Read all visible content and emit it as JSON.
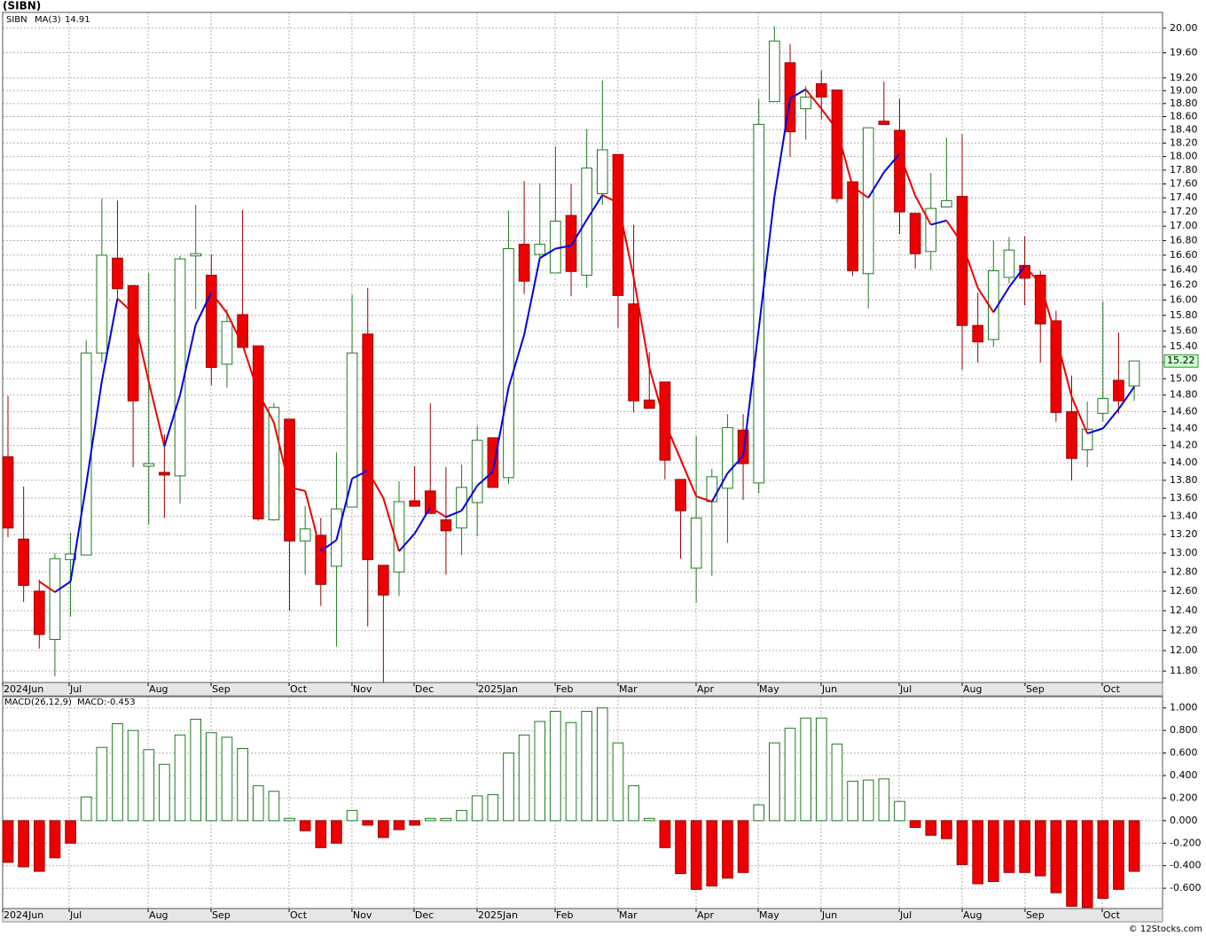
{
  "footer": "© 12Stocks.com",
  "chart_data": [
    {
      "type": "candlestick",
      "title": "(SIBN)",
      "name": "SIBN",
      "name_color": "#008000",
      "last_label": "15.22",
      "up_color": "#ffffff",
      "up_edge": "#1f7a1f",
      "down_color": "#ee0000",
      "down_edge": "#990000",
      "log_scale": true,
      "grid": true,
      "open": [
        14.07,
        13.15,
        12.6,
        12.11,
        12.93,
        12.98,
        15.32,
        16.56,
        16.19,
        13.96,
        13.89,
        13.85,
        16.59,
        16.33,
        15.18,
        15.81,
        15.41,
        13.36,
        14.51,
        13.13,
        13.19,
        12.86,
        13.5,
        15.56,
        12.87,
        12.8,
        13.57,
        13.68,
        13.36,
        13.27,
        13.55,
        14.29,
        13.83,
        16.75,
        16.61,
        16.36,
        17.15,
        16.33,
        17.46,
        18.03,
        15.95,
        14.74,
        14.96,
        13.81,
        12.84,
        13.56,
        13.71,
        14.38,
        13.77,
        18.83,
        19.44,
        18.72,
        19.11,
        19.01,
        17.63,
        16.35,
        18.53,
        18.39,
        17.18,
        16.65,
        17.27,
        17.42,
        15.67,
        15.49,
        16.3,
        16.46,
        16.33,
        15.73,
        14.6,
        14.15,
        14.58,
        14.98,
        14.91
      ],
      "high": [
        14.79,
        13.73,
        12.72,
        13.0,
        13.22,
        15.48,
        17.39,
        17.36,
        16.2,
        16.36,
        14.33,
        16.59,
        17.3,
        16.61,
        15.88,
        17.23,
        15.41,
        14.7,
        14.51,
        13.51,
        13.38,
        14.12,
        16.07,
        16.16,
        12.87,
        13.79,
        13.96,
        14.7,
        13.95,
        13.98,
        14.43,
        14.29,
        17.22,
        17.64,
        17.61,
        18.15,
        17.6,
        18.41,
        19.16,
        18.03,
        17.02,
        15.33,
        14.96,
        13.81,
        14.31,
        13.93,
        14.57,
        14.57,
        18.87,
        20.03,
        19.74,
        19.07,
        19.32,
        19.01,
        17.63,
        18.43,
        19.14,
        18.87,
        17.18,
        17.76,
        18.28,
        18.33,
        16.1,
        16.8,
        16.85,
        16.86,
        16.39,
        15.86,
        15.04,
        14.72,
        15.98,
        15.58,
        15.22
      ],
      "low": [
        13.17,
        12.49,
        12.02,
        11.75,
        12.34,
        12.98,
        15.2,
        15.99,
        13.95,
        13.31,
        13.38,
        13.54,
        15.88,
        14.92,
        14.89,
        15.39,
        13.35,
        13.35,
        12.4,
        12.77,
        12.45,
        12.04,
        13.5,
        12.24,
        11.69,
        12.55,
        13.51,
        13.43,
        12.77,
        12.98,
        13.18,
        13.72,
        13.76,
        16.08,
        16.51,
        16.36,
        16.05,
        16.16,
        17.3,
        15.64,
        14.59,
        14.64,
        13.81,
        12.94,
        12.48,
        12.76,
        13.11,
        13.58,
        13.65,
        18.83,
        18.0,
        18.25,
        18.56,
        17.33,
        16.32,
        15.89,
        18.48,
        16.89,
        16.42,
        16.4,
        17.27,
        15.11,
        15.2,
        15.4,
        16.22,
        15.93,
        15.2,
        14.48,
        13.8,
        13.95,
        14.48,
        14.58,
        14.73
      ],
      "close": [
        13.27,
        12.66,
        12.16,
        12.94,
        12.99,
        15.32,
        16.6,
        16.15,
        14.73,
        13.99,
        13.86,
        16.55,
        16.62,
        15.14,
        15.72,
        15.39,
        13.37,
        14.65,
        13.13,
        13.26,
        12.67,
        13.48,
        15.32,
        12.93,
        12.56,
        13.56,
        13.51,
        13.43,
        13.24,
        13.72,
        14.26,
        13.72,
        16.69,
        16.25,
        16.75,
        17.07,
        16.38,
        17.83,
        18.1,
        16.06,
        14.73,
        14.64,
        14.03,
        13.46,
        13.38,
        13.84,
        14.41,
        13.99,
        18.48,
        19.79,
        18.37,
        18.9,
        18.9,
        17.39,
        16.39,
        18.43,
        18.48,
        17.2,
        16.62,
        17.25,
        17.36,
        15.67,
        15.46,
        16.39,
        16.67,
        16.29,
        15.69,
        14.59,
        14.05,
        14.39,
        14.76,
        14.73,
        15.22
      ],
      "series": [
        {
          "name": "MA(3)",
          "label": "14.91",
          "color": "#0000cc",
          "up_color": "#0000dd",
          "down_color": "#ee0000",
          "values": [
            null,
            null,
            12.7,
            12.59,
            12.7,
            13.75,
            14.97,
            16.02,
            15.83,
            14.96,
            14.19,
            14.8,
            15.68,
            16.1,
            15.83,
            15.42,
            14.83,
            14.47,
            13.72,
            13.68,
            13.02,
            13.14,
            13.82,
            13.91,
            13.6,
            13.02,
            13.21,
            13.5,
            13.39,
            13.46,
            13.74,
            13.9,
            14.89,
            15.55,
            16.56,
            16.69,
            16.73,
            17.09,
            17.44,
            17.33,
            16.3,
            15.14,
            14.47,
            14.04,
            13.62,
            13.56,
            13.88,
            14.08,
            15.63,
            17.42,
            18.88,
            19.02,
            18.72,
            18.4,
            17.56,
            17.4,
            17.77,
            18.04,
            17.43,
            17.02,
            17.08,
            16.76,
            16.16,
            15.84,
            16.17,
            16.45,
            16.22,
            15.52,
            14.78,
            14.34,
            14.4,
            14.63,
            14.9
          ]
        }
      ],
      "xlim": [
        -0.34,
        73.81
      ],
      "xticks": [
        {
          "value": -0.34,
          "label": "2024Jun"
        },
        {
          "value": 3.91,
          "label": "Jul"
        },
        {
          "value": 8.96,
          "label": "Aug"
        },
        {
          "value": 12.98,
          "label": "Sep"
        },
        {
          "value": 17.97,
          "label": "Oct"
        },
        {
          "value": 21.99,
          "label": "Nov"
        },
        {
          "value": 25.96,
          "label": "Dec"
        },
        {
          "value": 29.99,
          "label": "2025Jan"
        },
        {
          "value": 34.98,
          "label": "Feb"
        },
        {
          "value": 39.0,
          "label": "Mar"
        },
        {
          "value": 43.99,
          "label": "Apr"
        },
        {
          "value": 47.96,
          "label": "May"
        },
        {
          "value": 51.98,
          "label": "Jun"
        },
        {
          "value": 56.97,
          "label": "Jul"
        },
        {
          "value": 61.0,
          "label": "Aug"
        },
        {
          "value": 65.02,
          "label": "Sep"
        },
        {
          "value": 69.95,
          "label": "Oct"
        }
      ],
      "ylim": [
        11.69,
        20.26
      ],
      "yticks": [
        {
          "value": 20,
          "label": "20.00"
        },
        {
          "value": 19.6,
          "label": "19.60"
        },
        {
          "value": 19.2,
          "label": "19.20"
        },
        {
          "value": 19,
          "label": "19.00"
        },
        {
          "value": 18.8,
          "label": "18.80"
        },
        {
          "value": 18.6,
          "label": "18.60"
        },
        {
          "value": 18.4,
          "label": "18.40"
        },
        {
          "value": 18.2,
          "label": "18.20"
        },
        {
          "value": 18,
          "label": "18.00"
        },
        {
          "value": 17.8,
          "label": "17.80"
        },
        {
          "value": 17.6,
          "label": "17.60"
        },
        {
          "value": 17.4,
          "label": "17.40"
        },
        {
          "value": 17.2,
          "label": "17.20"
        },
        {
          "value": 17,
          "label": "17.00"
        },
        {
          "value": 16.8,
          "label": "16.80"
        },
        {
          "value": 16.6,
          "label": "16.60"
        },
        {
          "value": 16.4,
          "label": "16.40"
        },
        {
          "value": 16.2,
          "label": "16.20"
        },
        {
          "value": 16,
          "label": "16.00"
        },
        {
          "value": 15.8,
          "label": "15.80"
        },
        {
          "value": 15.6,
          "label": "15.60"
        },
        {
          "value": 15.4,
          "label": "15.40"
        },
        {
          "value": 15.2,
          "label": "15.20"
        },
        {
          "value": 15,
          "label": "15.00"
        },
        {
          "value": 14.8,
          "label": "14.80"
        },
        {
          "value": 14.6,
          "label": "14.60"
        },
        {
          "value": 14.4,
          "label": "14.40"
        },
        {
          "value": 14.2,
          "label": "14.20"
        },
        {
          "value": 14,
          "label": "14.00"
        },
        {
          "value": 13.8,
          "label": "13.80"
        },
        {
          "value": 13.6,
          "label": "13.60"
        },
        {
          "value": 13.4,
          "label": "13.40"
        },
        {
          "value": 13.2,
          "label": "13.20"
        },
        {
          "value": 13,
          "label": "13.00"
        },
        {
          "value": 12.8,
          "label": "12.80"
        },
        {
          "value": 12.6,
          "label": "12.60"
        },
        {
          "value": 12.4,
          "label": "12.40"
        },
        {
          "value": 12.2,
          "label": "12.20"
        },
        {
          "value": 12,
          "label": "12.00"
        },
        {
          "value": 11.8,
          "label": "11.80"
        }
      ]
    },
    {
      "type": "bar",
      "name": "MACD(26,12,9)",
      "label": "MACD:-0.453",
      "label_color": "#0000cc",
      "up_color": "#ffffff",
      "up_edge": "#1f7a1f",
      "down_color": "#ee0000",
      "down_edge": "#990000",
      "grid": true,
      "values": [
        -0.37,
        -0.41,
        -0.45,
        -0.33,
        -0.2,
        0.21,
        0.65,
        0.86,
        0.8,
        0.63,
        0.5,
        0.76,
        0.9,
        0.78,
        0.74,
        0.64,
        0.31,
        0.26,
        0.02,
        -0.09,
        -0.24,
        -0.2,
        0.09,
        -0.04,
        -0.15,
        -0.08,
        -0.04,
        0.02,
        0.02,
        0.09,
        0.22,
        0.23,
        0.6,
        0.76,
        0.88,
        0.97,
        0.87,
        0.97,
        1.0,
        0.69,
        0.31,
        0.02,
        -0.24,
        -0.47,
        -0.61,
        -0.58,
        -0.51,
        -0.46,
        0.14,
        0.69,
        0.82,
        0.91,
        0.91,
        0.68,
        0.35,
        0.36,
        0.37,
        0.17,
        -0.06,
        -0.13,
        -0.16,
        -0.39,
        -0.56,
        -0.54,
        -0.46,
        -0.46,
        -0.49,
        -0.64,
        -0.76,
        -0.77,
        -0.69,
        -0.61,
        -0.45
      ],
      "xlim": [
        -0.34,
        73.81
      ],
      "xticks": [
        {
          "value": -0.34,
          "label": "2024Jun"
        },
        {
          "value": 3.91,
          "label": "Jul"
        },
        {
          "value": 8.96,
          "label": "Aug"
        },
        {
          "value": 12.98,
          "label": "Sep"
        },
        {
          "value": 17.97,
          "label": "Oct"
        },
        {
          "value": 21.99,
          "label": "Nov"
        },
        {
          "value": 25.96,
          "label": "Dec"
        },
        {
          "value": 29.99,
          "label": "2025Jan"
        },
        {
          "value": 34.98,
          "label": "Feb"
        },
        {
          "value": 39.0,
          "label": "Mar"
        },
        {
          "value": 43.99,
          "label": "Apr"
        },
        {
          "value": 47.96,
          "label": "May"
        },
        {
          "value": 51.98,
          "label": "Jun"
        },
        {
          "value": 56.97,
          "label": "Jul"
        },
        {
          "value": 61.0,
          "label": "Aug"
        },
        {
          "value": 65.02,
          "label": "Sep"
        },
        {
          "value": 69.95,
          "label": "Oct"
        }
      ],
      "ylim": [
        -0.78,
        1.1
      ],
      "yticks": [
        {
          "value": 1,
          "label": "1.000"
        },
        {
          "value": 0.8,
          "label": "0.800"
        },
        {
          "value": 0.6,
          "label": "0.600"
        },
        {
          "value": 0.4,
          "label": "0.400"
        },
        {
          "value": 0.2,
          "label": "0.200"
        },
        {
          "value": 0,
          "label": "0.000"
        },
        {
          "value": -0.2,
          "label": "-0.200"
        },
        {
          "value": -0.4,
          "label": "-0.400"
        },
        {
          "value": -0.6,
          "label": "-0.600"
        }
      ]
    }
  ]
}
